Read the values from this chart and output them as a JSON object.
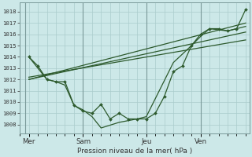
{
  "xlabel": "Pression niveau de la mer( hPa )",
  "background_color": "#cce8e8",
  "grid_color": "#aacccc",
  "line_color": "#2d5a2d",
  "ylim": [
    1007.2,
    1018.8
  ],
  "yticks": [
    1008,
    1009,
    1010,
    1011,
    1012,
    1013,
    1014,
    1015,
    1016,
    1017,
    1018
  ],
  "day_labels": [
    "Mer",
    "Sam",
    "Jeu",
    "Ven"
  ],
  "day_positions": [
    0.0,
    3.0,
    6.5,
    9.5
  ],
  "xlim": [
    -0.2,
    12.2
  ],
  "vlines": [
    -0.2,
    3.0,
    6.5,
    9.5
  ],
  "straight1": {
    "x": [
      0,
      12
    ],
    "y": [
      1012.0,
      1017.0
    ]
  },
  "straight2": {
    "x": [
      0,
      12
    ],
    "y": [
      1012.0,
      1016.2
    ]
  },
  "straight3": {
    "x": [
      0,
      12
    ],
    "y": [
      1012.2,
      1015.5
    ]
  },
  "wiggly": {
    "x": [
      0.0,
      0.5,
      1.0,
      1.5,
      2.0,
      2.5,
      3.0,
      3.5,
      4.0,
      4.5,
      5.0,
      5.5,
      6.0,
      6.5,
      7.0,
      7.5,
      8.0,
      8.5,
      9.0,
      9.5,
      10.0,
      10.5,
      11.0,
      11.5,
      12.0
    ],
    "y": [
      1014.0,
      1013.2,
      1012.0,
      1011.8,
      1011.8,
      1009.7,
      1009.2,
      1009.0,
      1009.8,
      1008.5,
      1009.0,
      1008.5,
      1008.5,
      1008.5,
      1009.0,
      1010.5,
      1012.7,
      1013.2,
      1015.0,
      1016.0,
      1016.5,
      1016.5,
      1016.3,
      1016.5,
      1018.2
    ]
  },
  "extra": {
    "x": [
      0.0,
      1.0,
      1.5,
      2.0,
      2.5,
      3.0,
      3.5,
      4.0,
      5.0,
      6.0,
      6.5,
      7.0,
      8.0,
      9.0,
      9.5,
      10.0,
      11.0,
      12.0
    ],
    "y": [
      1014.0,
      1012.0,
      1011.8,
      1011.5,
      1009.7,
      1009.3,
      1008.7,
      1007.7,
      1008.2,
      1008.5,
      1008.7,
      1010.3,
      1013.5,
      1015.0,
      1015.8,
      1016.5,
      1016.3,
      1016.7
    ]
  }
}
